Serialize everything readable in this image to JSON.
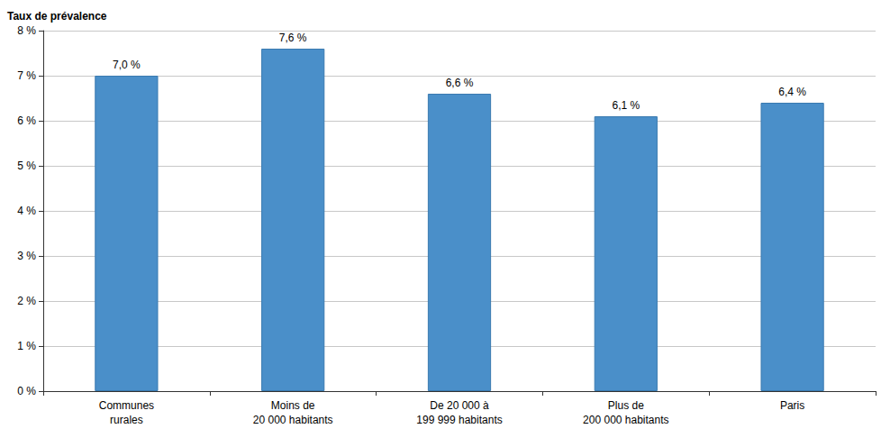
{
  "chart_data": {
    "type": "bar",
    "y_label": "Taux de prévalence",
    "categories": [
      "Communes\nrurales",
      "Moins de\n20 000 habitants",
      "De 20 000 à\n199 999 habitants",
      "Plus de\n200 000 habitants",
      "Paris"
    ],
    "values": [
      7.0,
      7.6,
      6.6,
      6.1,
      6.4
    ],
    "value_labels": [
      "7,0 %",
      "7,6 %",
      "6,6 %",
      "6,1 %",
      "6,4 %"
    ],
    "color": "#4a8fc9",
    "ylim": [
      0,
      8
    ],
    "yticks": [
      {
        "value": 0,
        "label": "0 %"
      },
      {
        "value": 1,
        "label": "1 %"
      },
      {
        "value": 2,
        "label": "2 %"
      },
      {
        "value": 3,
        "label": "3 %"
      },
      {
        "value": 4,
        "label": "4 %"
      },
      {
        "value": 5,
        "label": "5 %"
      },
      {
        "value": 6,
        "label": "6 %"
      },
      {
        "value": 7,
        "label": "7 %"
      },
      {
        "value": 8,
        "label": "8 %"
      }
    ],
    "grid": true,
    "data_labels": true
  }
}
